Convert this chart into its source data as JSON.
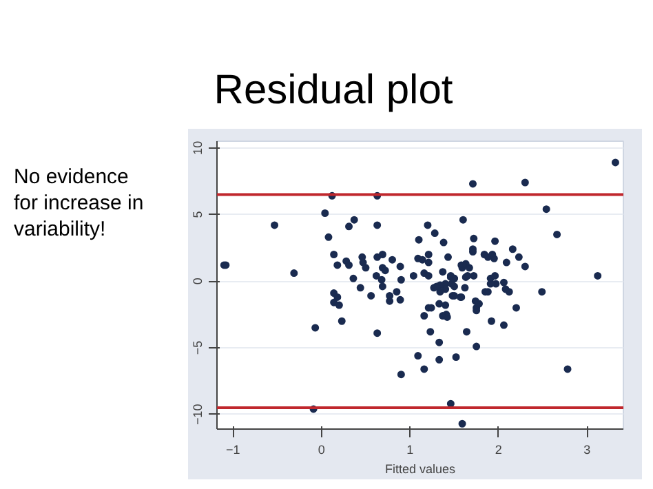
{
  "chart_data": {
    "type": "scatter",
    "title": "Residual plot",
    "xlabel": "Fitted values",
    "annotations": [
      "No evidence for increase in variability!"
    ],
    "xlim": [
      -1.18,
      3.41
    ],
    "ylim": [
      -11.1,
      10.5
    ],
    "xticks": [
      -1,
      0,
      1,
      2,
      3
    ],
    "yticks": [
      -10,
      -5,
      0,
      5,
      10
    ],
    "grid": "y",
    "marker": "circle",
    "ref_lines": [
      {
        "axis": "y",
        "value": 6.5,
        "color": "#c0272d"
      },
      {
        "axis": "y",
        "value": -9.5,
        "color": "#c0272d"
      }
    ],
    "series": [
      {
        "color": "#1a2b50",
        "x": [
          -1.1,
          -1.08,
          -0.53,
          -0.31,
          0.04,
          0.12,
          0.08,
          0.14,
          0.18,
          0.31,
          0.37,
          0.28,
          0.31,
          0.46,
          0.47,
          0.5,
          0.36,
          0.44,
          0.63,
          0.63,
          0.63,
          0.69,
          0.69,
          0.72,
          0.62,
          0.68,
          0.69,
          0.8,
          0.89,
          0.9,
          0.56,
          0.14,
          0.18,
          0.14,
          0.2,
          0.77,
          0.77,
          0.85,
          0.89,
          1.04,
          1.09,
          1.1,
          1.14,
          1.2,
          1.21,
          1.21,
          1.28,
          1.38,
          1.43,
          1.37,
          1.4,
          1.4,
          1.46,
          1.5,
          1.47,
          1.6,
          1.59,
          1.63,
          1.21,
          1.33,
          1.4,
          1.48,
          1.57,
          3.32,
          1.71,
          2.3,
          2.54,
          2.66,
          3.12,
          2.49,
          1.72,
          1.96,
          1.71,
          1.71,
          1.84,
          1.88,
          1.93,
          1.95,
          2.16,
          2.23,
          2.09,
          2.3,
          1.58,
          1.63,
          1.67,
          1.16,
          1.21,
          1.46,
          1.5,
          1.65,
          1.72,
          1.91,
          1.96,
          1.97,
          2.06,
          1.91,
          1.85,
          1.88,
          1.62,
          1.5,
          1.27,
          1.34,
          1.34,
          1.5,
          1.58,
          2.12,
          2.08,
          1.74,
          1.75,
          2.2,
          1.3,
          -0.07,
          -0.09,
          0.23,
          0.63,
          0.9,
          1.09,
          1.16,
          1.16,
          1.23,
          1.24,
          1.33,
          1.33,
          1.37,
          1.41,
          1.42,
          1.52,
          1.46,
          1.59,
          1.64,
          1.75,
          1.75,
          1.78,
          1.92,
          2.06,
          2.78
        ],
        "values": [
          1.2,
          1.2,
          4.2,
          0.6,
          5.1,
          6.4,
          3.3,
          2.0,
          1.2,
          4.1,
          4.6,
          1.5,
          1.2,
          1.8,
          1.4,
          1.0,
          0.2,
          -0.5,
          6.4,
          4.2,
          1.8,
          2.0,
          1.0,
          0.8,
          0.4,
          0.1,
          -0.4,
          1.6,
          1.1,
          0.1,
          -1.1,
          -0.9,
          -1.2,
          -1.6,
          -1.8,
          -1.1,
          -1.5,
          -0.8,
          -1.4,
          0.4,
          1.7,
          3.1,
          1.6,
          4.2,
          2.0,
          1.4,
          3.6,
          2.9,
          1.8,
          0.7,
          -0.2,
          -0.6,
          0.3,
          0.2,
          -0.2,
          4.6,
          1.0,
          0.3,
          -2.0,
          -1.7,
          -1.8,
          -1.1,
          -1.2,
          8.9,
          7.3,
          7.4,
          5.4,
          3.5,
          0.4,
          -0.8,
          3.2,
          3.0,
          2.4,
          2.2,
          2.0,
          1.8,
          2.0,
          1.7,
          2.4,
          1.8,
          1.4,
          1.1,
          1.2,
          1.3,
          1.0,
          0.6,
          0.4,
          0.4,
          0.2,
          0.4,
          0.4,
          0.2,
          0.4,
          -0.2,
          -0.1,
          -0.2,
          -0.8,
          -0.8,
          -0.5,
          -0.4,
          -0.5,
          -0.3,
          -0.8,
          -1.1,
          -1.2,
          -0.8,
          -0.6,
          -1.5,
          -2.0,
          -2.0,
          -0.4,
          -3.5,
          -9.6,
          -3.0,
          -3.9,
          -7.0,
          -5.6,
          -6.6,
          -2.6,
          -3.8,
          -2.0,
          -4.6,
          -5.9,
          -2.6,
          -2.5,
          -2.7,
          -5.7,
          -9.2,
          -10.7,
          -3.8,
          -4.9,
          -2.2,
          -1.7,
          -3.0,
          -3.3,
          -6.6
        ]
      }
    ]
  }
}
